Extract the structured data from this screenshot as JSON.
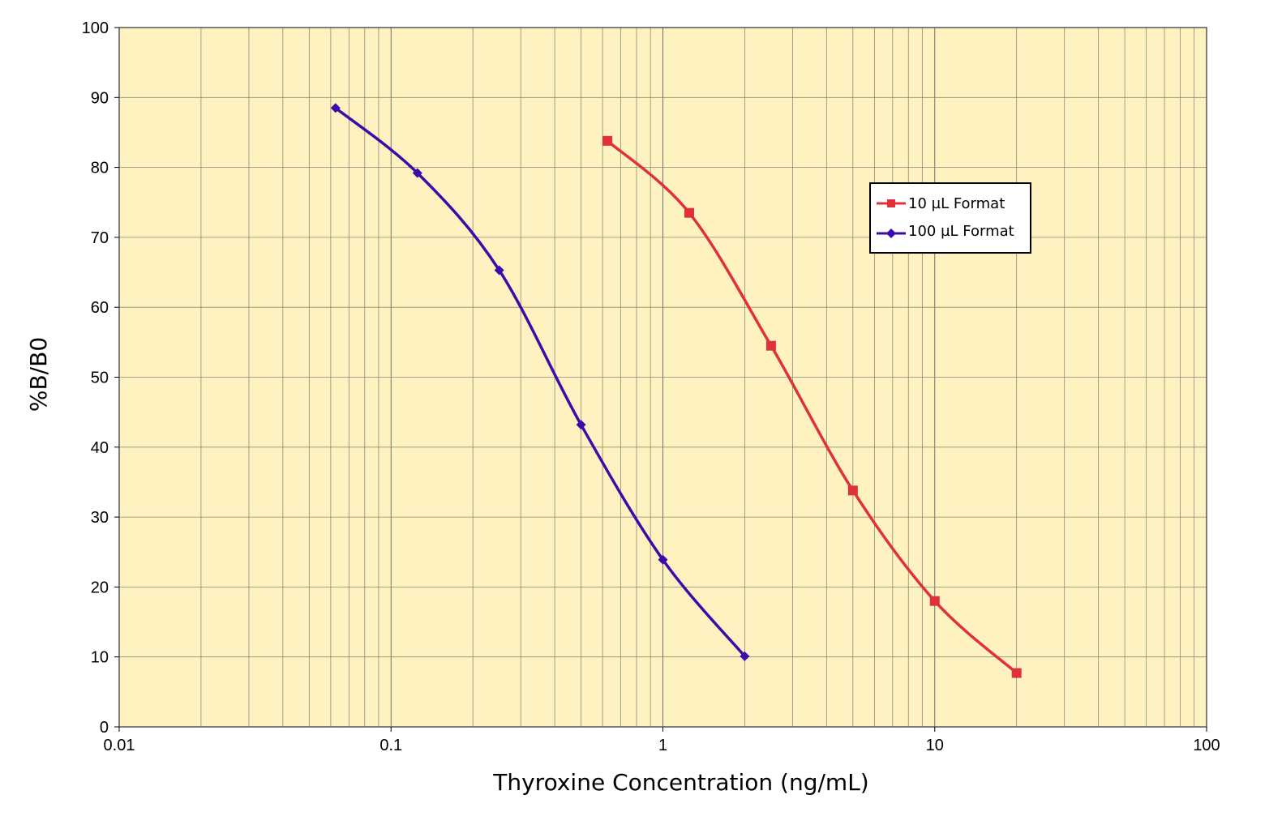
{
  "chart_data": {
    "type": "line",
    "xlabel": "Thyroxine Concentration (ng/mL)",
    "ylabel": "%B/B0",
    "x_scale": "log",
    "xlim": [
      0.01,
      100
    ],
    "ylim": [
      0,
      100
    ],
    "x_ticks": [
      "0.01",
      "0.1",
      "1",
      "10",
      "100"
    ],
    "y_ticks": [
      "0",
      "10",
      "20",
      "30",
      "40",
      "50",
      "60",
      "70",
      "80",
      "90",
      "100"
    ],
    "grid": true,
    "plot_background": "#FEF3C0",
    "legend_position": "upper-right",
    "series": [
      {
        "name": "10 µL Format",
        "color": "#E0303A",
        "marker": "square",
        "x": [
          0.625,
          1.25,
          2.5,
          5,
          10,
          20
        ],
        "y": [
          83.8,
          73.5,
          54.5,
          33.8,
          18.0,
          7.7
        ]
      },
      {
        "name": "100 µL Format",
        "color": "#3D0BA8",
        "marker": "diamond",
        "x": [
          0.0625,
          0.125,
          0.25,
          0.5,
          1,
          2
        ],
        "y": [
          88.5,
          79.2,
          65.3,
          43.2,
          23.9,
          10.1
        ]
      }
    ]
  }
}
